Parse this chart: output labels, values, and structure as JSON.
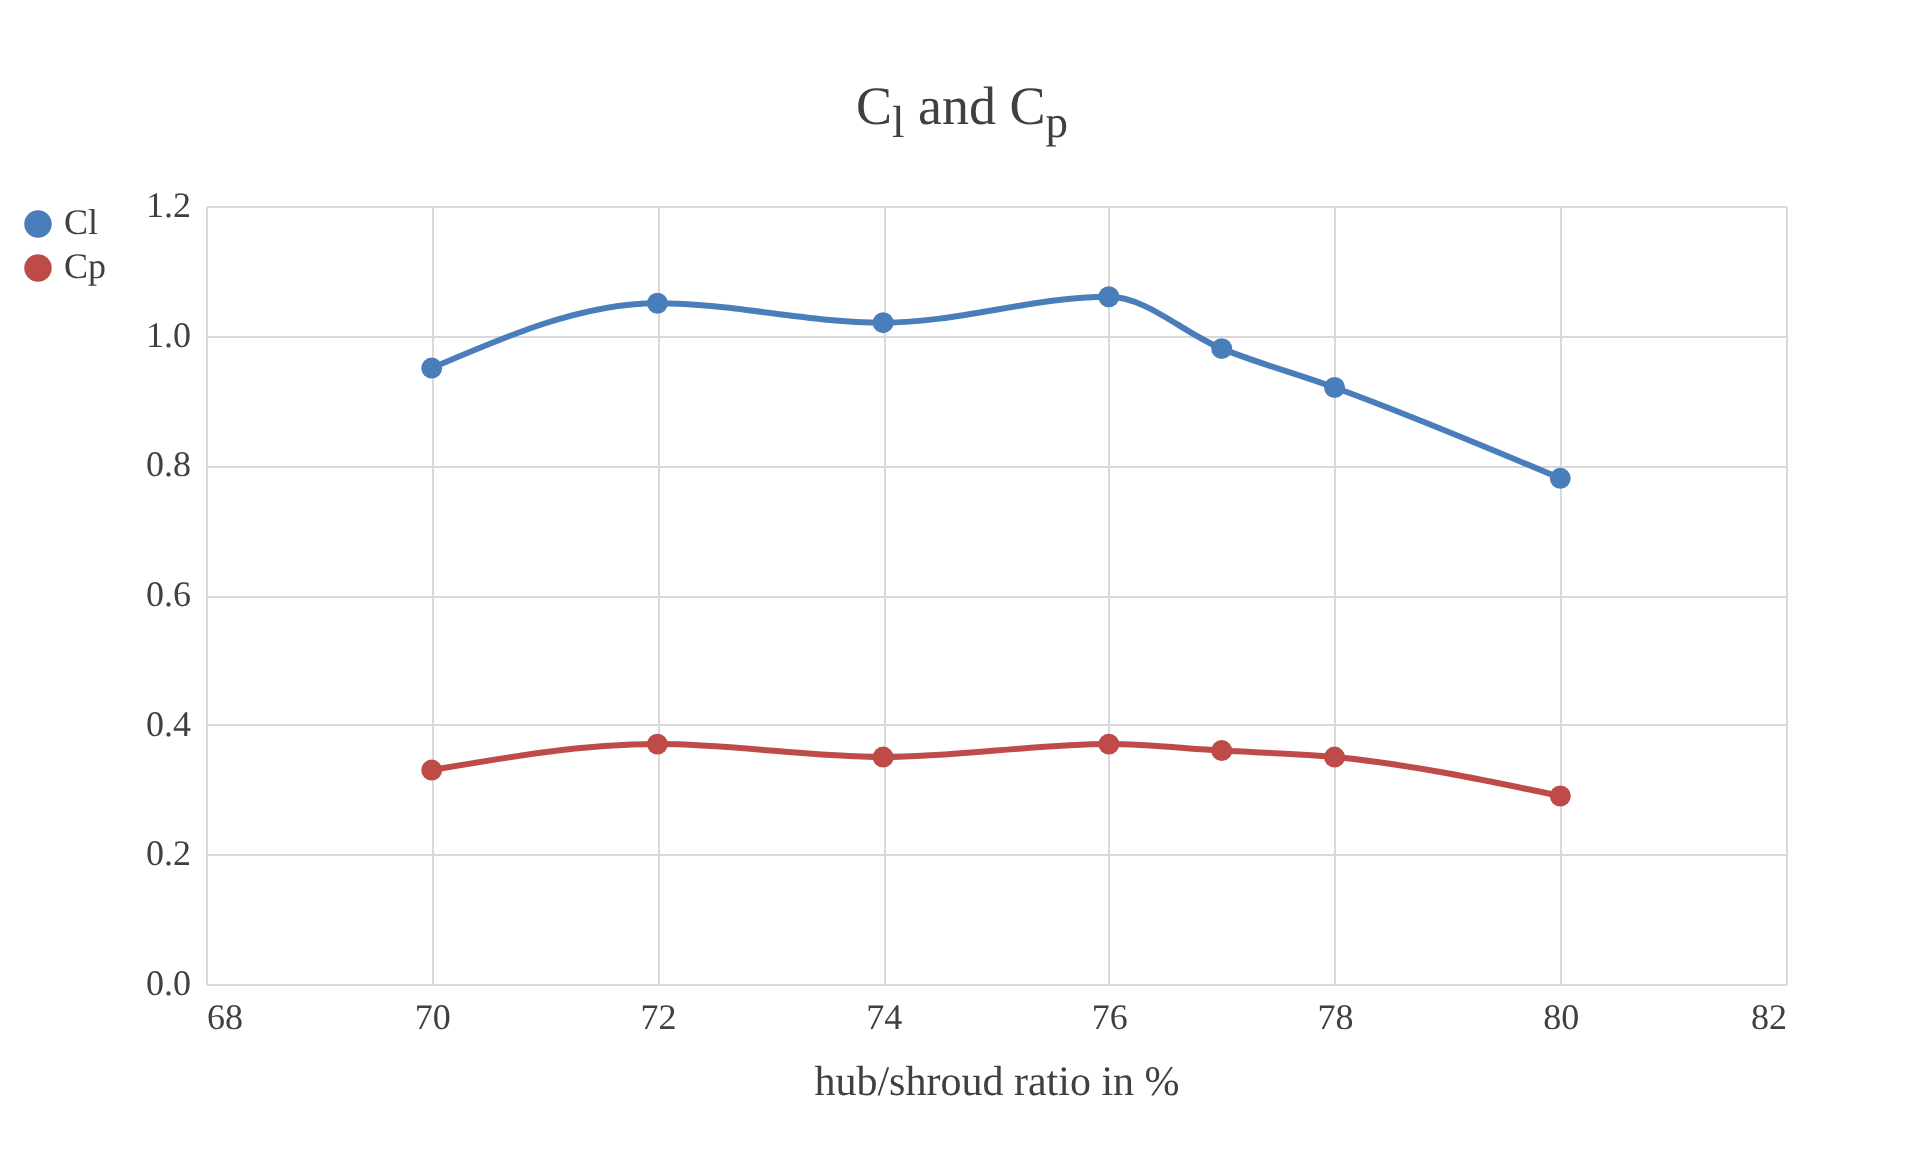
{
  "chart_data": {
    "type": "line",
    "title": "C$_{l}$ and C$_{p}$",
    "xlabel": "hub/shroud ratio in %",
    "x": [
      70,
      72,
      74,
      76,
      77,
      78,
      80
    ],
    "series": [
      {
        "name": "Cl",
        "color": "#4a7ebb",
        "values": [
          0.95,
          1.05,
          1.02,
          1.06,
          0.98,
          0.92,
          0.78
        ]
      },
      {
        "name": "Cp",
        "color": "#be4b48",
        "values": [
          0.33,
          0.37,
          0.35,
          0.37,
          0.36,
          0.35,
          0.29
        ]
      }
    ],
    "xlim": [
      68,
      82
    ],
    "xticks": [
      68,
      70,
      72,
      74,
      76,
      78,
      80,
      82
    ],
    "ylim": [
      0,
      1.2
    ],
    "yticks": [
      {
        "value": 0,
        "label": "0.0"
      },
      {
        "value": 0.2,
        "label": "0.2"
      },
      {
        "value": 0.4,
        "label": "0.4"
      },
      {
        "value": 0.6,
        "label": "0.6"
      },
      {
        "value": 0.8,
        "label": "0.8"
      },
      {
        "value": 1,
        "label": "1.0"
      },
      {
        "value": 1.2,
        "label": "1.2"
      }
    ],
    "grid": true,
    "legend": "left",
    "marker": "circle",
    "line_style": "solid"
  }
}
